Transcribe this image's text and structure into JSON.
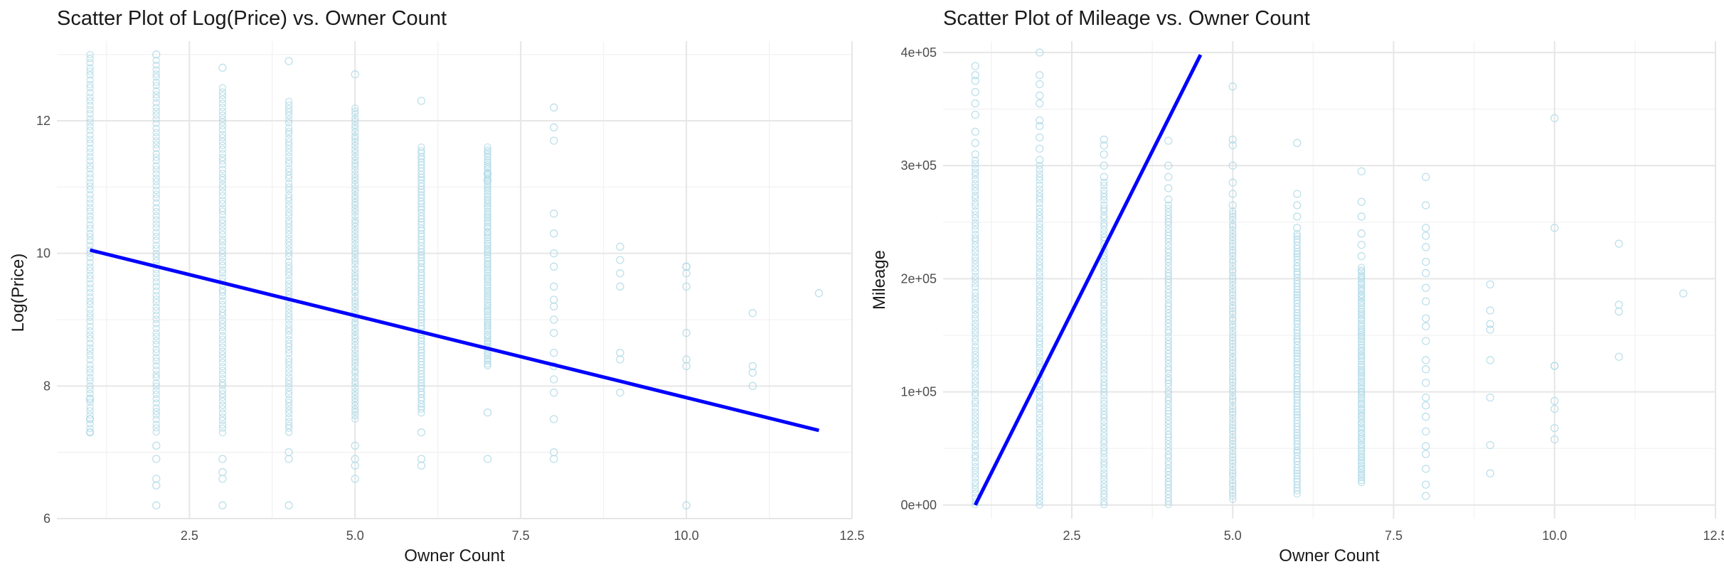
{
  "chart_data": [
    {
      "type": "scatter",
      "title": "Scatter Plot of Log(Price) vs. Owner Count",
      "xlabel": "Owner Count",
      "ylabel": "Log(Price)",
      "xlim": [
        0.5,
        12.5
      ],
      "ylim": [
        6.0,
        13.2
      ],
      "xticks": [
        2.5,
        5.0,
        7.5,
        10.0,
        12.5
      ],
      "xtick_labels": [
        "2.5",
        "5.0",
        "7.5",
        "10.0",
        "12.5"
      ],
      "yticks": [
        6,
        8,
        10,
        12
      ],
      "ytick_labels": [
        "6",
        "8",
        "10",
        "12"
      ],
      "grid": true,
      "legend": "none",
      "point_color": "#ADD8E6",
      "line_color": "#0000FF",
      "ranges": [
        {
          "x": 1,
          "min": 7.3,
          "max": 13.0
        },
        {
          "x": 2,
          "min": 7.3,
          "max": 12.9
        },
        {
          "x": 3,
          "min": 7.3,
          "max": 12.5
        },
        {
          "x": 4,
          "min": 7.3,
          "max": 12.3
        },
        {
          "x": 5,
          "min": 7.5,
          "max": 12.2
        },
        {
          "x": 6,
          "min": 7.6,
          "max": 11.6
        },
        {
          "x": 7,
          "min": 8.3,
          "max": 11.6
        }
      ],
      "points": [
        {
          "x": 1,
          "y": 7.3
        },
        {
          "x": 1,
          "y": 7.5
        },
        {
          "x": 1,
          "y": 7.8
        },
        {
          "x": 2,
          "y": 6.2
        },
        {
          "x": 2,
          "y": 6.5
        },
        {
          "x": 2,
          "y": 6.6
        },
        {
          "x": 2,
          "y": 6.9
        },
        {
          "x": 2,
          "y": 7.1
        },
        {
          "x": 2,
          "y": 13.0
        },
        {
          "x": 3,
          "y": 6.2
        },
        {
          "x": 3,
          "y": 6.6
        },
        {
          "x": 3,
          "y": 6.7
        },
        {
          "x": 3,
          "y": 6.9
        },
        {
          "x": 3,
          "y": 12.8
        },
        {
          "x": 4,
          "y": 6.2
        },
        {
          "x": 4,
          "y": 6.9
        },
        {
          "x": 4,
          "y": 7.0
        },
        {
          "x": 4,
          "y": 12.9
        },
        {
          "x": 5,
          "y": 6.6
        },
        {
          "x": 5,
          "y": 6.8
        },
        {
          "x": 5,
          "y": 6.9
        },
        {
          "x": 5,
          "y": 7.1
        },
        {
          "x": 5,
          "y": 12.7
        },
        {
          "x": 6,
          "y": 6.8
        },
        {
          "x": 6,
          "y": 6.9
        },
        {
          "x": 6,
          "y": 7.3
        },
        {
          "x": 6,
          "y": 12.3
        },
        {
          "x": 7,
          "y": 6.9
        },
        {
          "x": 7,
          "y": 7.6
        },
        {
          "x": 7,
          "y": 11.1
        },
        {
          "x": 7,
          "y": 11.2
        },
        {
          "x": 8,
          "y": 6.9
        },
        {
          "x": 8,
          "y": 7.0
        },
        {
          "x": 8,
          "y": 7.5
        },
        {
          "x": 8,
          "y": 7.9
        },
        {
          "x": 8,
          "y": 8.1
        },
        {
          "x": 8,
          "y": 8.3
        },
        {
          "x": 8,
          "y": 8.5
        },
        {
          "x": 8,
          "y": 8.8
        },
        {
          "x": 8,
          "y": 9.0
        },
        {
          "x": 8,
          "y": 9.2
        },
        {
          "x": 8,
          "y": 9.3
        },
        {
          "x": 8,
          "y": 9.5
        },
        {
          "x": 8,
          "y": 9.8
        },
        {
          "x": 8,
          "y": 10.0
        },
        {
          "x": 8,
          "y": 10.3
        },
        {
          "x": 8,
          "y": 10.6
        },
        {
          "x": 8,
          "y": 11.7
        },
        {
          "x": 8,
          "y": 11.9
        },
        {
          "x": 8,
          "y": 12.2
        },
        {
          "x": 9,
          "y": 7.9
        },
        {
          "x": 9,
          "y": 8.4
        },
        {
          "x": 9,
          "y": 8.5
        },
        {
          "x": 9,
          "y": 9.5
        },
        {
          "x": 9,
          "y": 9.7
        },
        {
          "x": 9,
          "y": 9.9
        },
        {
          "x": 9,
          "y": 10.1
        },
        {
          "x": 10,
          "y": 6.2
        },
        {
          "x": 10,
          "y": 8.3
        },
        {
          "x": 10,
          "y": 8.4
        },
        {
          "x": 10,
          "y": 8.8
        },
        {
          "x": 10,
          "y": 9.5
        },
        {
          "x": 10,
          "y": 9.7
        },
        {
          "x": 10,
          "y": 9.8
        },
        {
          "x": 10,
          "y": 9.8
        },
        {
          "x": 11,
          "y": 8.0
        },
        {
          "x": 11,
          "y": 8.2
        },
        {
          "x": 11,
          "y": 8.3
        },
        {
          "x": 11,
          "y": 9.1
        },
        {
          "x": 12,
          "y": 9.4
        }
      ],
      "regression_line": {
        "x": [
          1,
          12
        ],
        "y": [
          10.05,
          7.33
        ]
      }
    },
    {
      "type": "scatter",
      "title": "Scatter Plot of Mileage vs. Owner Count",
      "xlabel": "Owner Count",
      "ylabel": "Mileage",
      "xlim": [
        0.5,
        12.5
      ],
      "ylim": [
        -12000,
        410000
      ],
      "xticks": [
        2.5,
        5.0,
        7.5,
        10.0,
        12.5
      ],
      "xtick_labels": [
        "2.5",
        "5.0",
        "7.5",
        "10.0",
        "12.5"
      ],
      "yticks": [
        0,
        100000,
        200000,
        300000,
        400000
      ],
      "ytick_labels": [
        "0e+00",
        "1e+05",
        "2e+05",
        "3e+05",
        "4e+05"
      ],
      "grid": true,
      "legend": "none",
      "point_color": "#ADD8E6",
      "line_color": "#0000FF",
      "ranges": [
        {
          "x": 1,
          "min": 0,
          "max": 305000
        },
        {
          "x": 2,
          "min": 0,
          "max": 300000
        },
        {
          "x": 3,
          "min": 0,
          "max": 285000
        },
        {
          "x": 4,
          "min": 0,
          "max": 265000
        },
        {
          "x": 5,
          "min": 5000,
          "max": 260000
        },
        {
          "x": 6,
          "min": 10000,
          "max": 240000
        },
        {
          "x": 7,
          "min": 20000,
          "max": 210000
        }
      ],
      "points": [
        {
          "x": 1,
          "y": 310000
        },
        {
          "x": 1,
          "y": 320000
        },
        {
          "x": 1,
          "y": 330000
        },
        {
          "x": 1,
          "y": 345000
        },
        {
          "x": 1,
          "y": 355000
        },
        {
          "x": 1,
          "y": 365000
        },
        {
          "x": 1,
          "y": 375000
        },
        {
          "x": 1,
          "y": 380000
        },
        {
          "x": 1,
          "y": 388000
        },
        {
          "x": 2,
          "y": 305000
        },
        {
          "x": 2,
          "y": 315000
        },
        {
          "x": 2,
          "y": 325000
        },
        {
          "x": 2,
          "y": 335000
        },
        {
          "x": 2,
          "y": 340000
        },
        {
          "x": 2,
          "y": 355000
        },
        {
          "x": 2,
          "y": 362000
        },
        {
          "x": 2,
          "y": 372000
        },
        {
          "x": 2,
          "y": 380000
        },
        {
          "x": 2,
          "y": 400000
        },
        {
          "x": 3,
          "y": 290000
        },
        {
          "x": 3,
          "y": 300000
        },
        {
          "x": 3,
          "y": 310000
        },
        {
          "x": 3,
          "y": 318000
        },
        {
          "x": 3,
          "y": 323000
        },
        {
          "x": 4,
          "y": 270000
        },
        {
          "x": 4,
          "y": 280000
        },
        {
          "x": 4,
          "y": 290000
        },
        {
          "x": 4,
          "y": 300000
        },
        {
          "x": 4,
          "y": 322000
        },
        {
          "x": 5,
          "y": 265000
        },
        {
          "x": 5,
          "y": 275000
        },
        {
          "x": 5,
          "y": 285000
        },
        {
          "x": 5,
          "y": 300000
        },
        {
          "x": 5,
          "y": 318000
        },
        {
          "x": 5,
          "y": 323000
        },
        {
          "x": 5,
          "y": 370000
        },
        {
          "x": 6,
          "y": 245000
        },
        {
          "x": 6,
          "y": 255000
        },
        {
          "x": 6,
          "y": 265000
        },
        {
          "x": 6,
          "y": 275000
        },
        {
          "x": 6,
          "y": 320000
        },
        {
          "x": 7,
          "y": 220000
        },
        {
          "x": 7,
          "y": 230000
        },
        {
          "x": 7,
          "y": 240000
        },
        {
          "x": 7,
          "y": 255000
        },
        {
          "x": 7,
          "y": 268000
        },
        {
          "x": 7,
          "y": 295000
        },
        {
          "x": 8,
          "y": 8000
        },
        {
          "x": 8,
          "y": 18000
        },
        {
          "x": 8,
          "y": 32000
        },
        {
          "x": 8,
          "y": 45000
        },
        {
          "x": 8,
          "y": 52000
        },
        {
          "x": 8,
          "y": 65000
        },
        {
          "x": 8,
          "y": 78000
        },
        {
          "x": 8,
          "y": 88000
        },
        {
          "x": 8,
          "y": 95000
        },
        {
          "x": 8,
          "y": 108000
        },
        {
          "x": 8,
          "y": 120000
        },
        {
          "x": 8,
          "y": 128000
        },
        {
          "x": 8,
          "y": 145000
        },
        {
          "x": 8,
          "y": 158000
        },
        {
          "x": 8,
          "y": 165000
        },
        {
          "x": 8,
          "y": 180000
        },
        {
          "x": 8,
          "y": 192000
        },
        {
          "x": 8,
          "y": 205000
        },
        {
          "x": 8,
          "y": 215000
        },
        {
          "x": 8,
          "y": 228000
        },
        {
          "x": 8,
          "y": 238000
        },
        {
          "x": 8,
          "y": 245000
        },
        {
          "x": 8,
          "y": 265000
        },
        {
          "x": 8,
          "y": 290000
        },
        {
          "x": 9,
          "y": 28000
        },
        {
          "x": 9,
          "y": 53000
        },
        {
          "x": 9,
          "y": 95000
        },
        {
          "x": 9,
          "y": 128000
        },
        {
          "x": 9,
          "y": 155000
        },
        {
          "x": 9,
          "y": 160000
        },
        {
          "x": 9,
          "y": 172000
        },
        {
          "x": 9,
          "y": 195000
        },
        {
          "x": 10,
          "y": 58000
        },
        {
          "x": 10,
          "y": 68000
        },
        {
          "x": 10,
          "y": 85000
        },
        {
          "x": 10,
          "y": 92000
        },
        {
          "x": 10,
          "y": 123000
        },
        {
          "x": 10,
          "y": 123000
        },
        {
          "x": 10,
          "y": 245000
        },
        {
          "x": 10,
          "y": 342000
        },
        {
          "x": 11,
          "y": 131000
        },
        {
          "x": 11,
          "y": 171000
        },
        {
          "x": 11,
          "y": 177000
        },
        {
          "x": 11,
          "y": 231000
        },
        {
          "x": 12,
          "y": 187000
        }
      ],
      "regression_line": {
        "x": [
          1,
          4.5
        ],
        "y": [
          0,
          398000
        ]
      }
    }
  ]
}
